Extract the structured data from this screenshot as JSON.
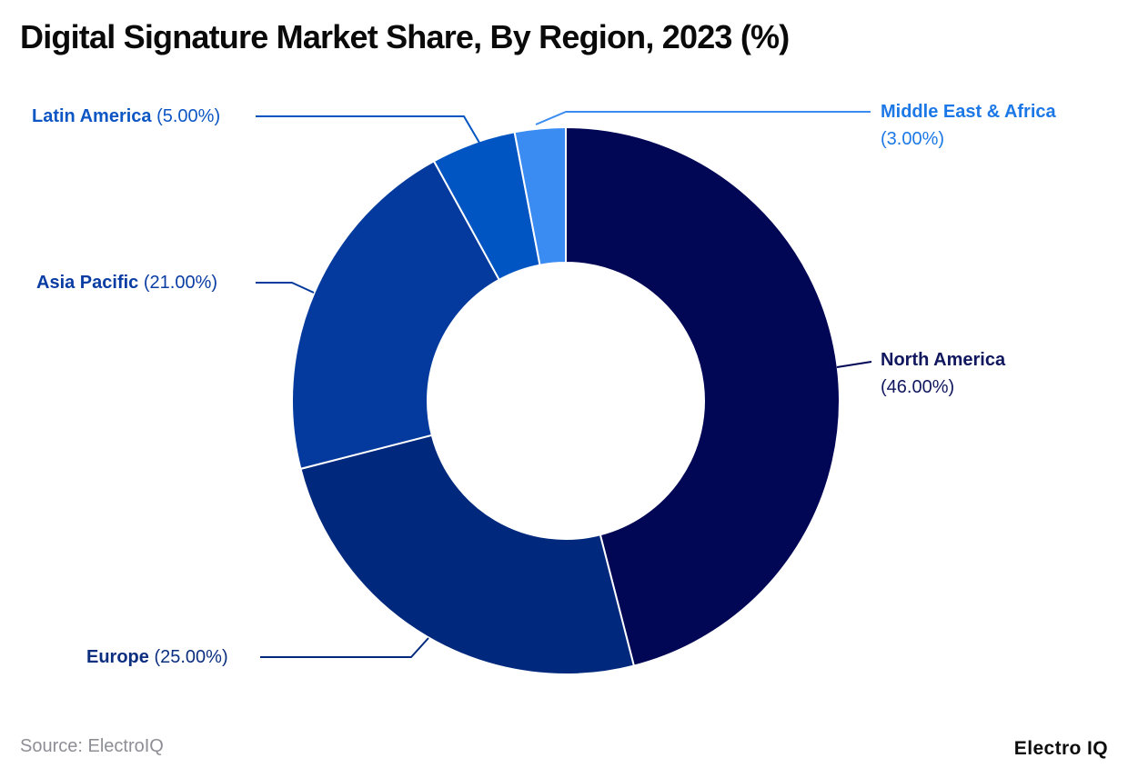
{
  "title": "Digital Signature Market Share, By Region, 2023 (%)",
  "source_text": "Source: ElectroIQ",
  "brand_text": "Electro IQ",
  "chart_data": {
    "type": "pie",
    "subtype": "donut",
    "title": "Digital Signature Market Share, By Region, 2023 (%)",
    "unit": "%",
    "categories": [
      "North America",
      "Europe",
      "Asia Pacific",
      "Latin America",
      "Middle East & Africa"
    ],
    "values": [
      46,
      25,
      21,
      5,
      3
    ],
    "start_angle_deg": 0,
    "direction": "clockwise",
    "inner_radius_ratio": 0.505,
    "separator_color": "#ffffff",
    "legend_position": "callout-labels",
    "slices": [
      {
        "name": "North America",
        "value": 46,
        "pct_label": "(46.00%)",
        "color": "#010655",
        "label_color": "#10175e"
      },
      {
        "name": "Europe",
        "value": 25,
        "pct_label": "(25.00%)",
        "color": "#00297d",
        "label_color": "#0c2f80"
      },
      {
        "name": "Asia Pacific",
        "value": 21,
        "pct_label": "(21.00%)",
        "color": "#043a9d",
        "label_color": "#0a3da3"
      },
      {
        "name": "Latin America",
        "value": 5,
        "pct_label": "(5.00%)",
        "color": "#0055c3",
        "label_color": "#0d56c4"
      },
      {
        "name": "Middle East & Africa",
        "value": 3,
        "pct_label": "(3.00%)",
        "color": "#3a8bf2",
        "label_color": "#1c78e6"
      }
    ]
  }
}
